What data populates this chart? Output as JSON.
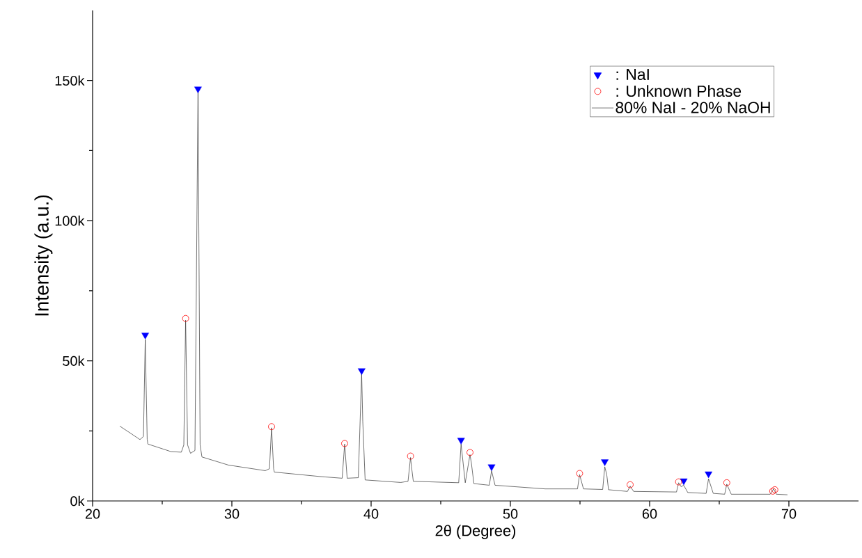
{
  "chart_data": {
    "type": "line",
    "xlabel": "2θ (Degree)",
    "ylabel": "Intensity (a.u.)",
    "xlim": [
      20,
      75
    ],
    "ylim": [
      0,
      175000
    ],
    "xticks": [
      20,
      30,
      40,
      50,
      60,
      70
    ],
    "yticks": [
      {
        "value": 0,
        "label": "0k"
      },
      {
        "value": 50000,
        "label": "50k"
      },
      {
        "value": 100000,
        "label": "100k"
      },
      {
        "value": 150000,
        "label": "150k"
      }
    ],
    "legend": "top right",
    "series": [
      {
        "name": ": NaI",
        "type": "scatter",
        "marker": "triangle",
        "color": "#0000ff",
        "x": [
          23.78,
          27.57,
          39.32,
          46.46,
          48.65,
          56.78,
          62.45,
          64.23
        ],
        "values": [
          59200,
          147000,
          46500,
          21700,
          12200,
          14000,
          7200,
          9700
        ]
      },
      {
        "name": ": Unknown Phase",
        "type": "scatter",
        "marker": "circle",
        "color": "#ff0000",
        "x": [
          26.68,
          32.85,
          38.1,
          42.83,
          47.1,
          54.97,
          58.6,
          62.08,
          65.54,
          68.84,
          68.99
        ],
        "values": [
          65100,
          26500,
          20500,
          16000,
          17300,
          9800,
          5800,
          6800,
          6500,
          3500,
          4000
        ]
      },
      {
        "name": "80% NaI - 20% NaOH",
        "color": "#333333",
        "x": [
          21.95,
          22.65,
          23.4,
          23.65,
          23.78,
          23.92,
          23.97,
          25.63,
          26.37,
          26.55,
          26.68,
          26.82,
          27.03,
          27.35,
          27.57,
          27.72,
          27.85,
          29.75,
          32.4,
          32.7,
          32.85,
          33.0,
          33.05,
          36.35,
          37.92,
          38.1,
          38.28,
          39.08,
          39.32,
          39.4,
          39.57,
          42.13,
          42.65,
          42.83,
          42.9,
          43.03,
          46.29,
          46.46,
          46.76,
          47.1,
          47.2,
          47.38,
          48.49,
          48.65,
          48.9,
          52.5,
          54.82,
          54.97,
          55.25,
          56.63,
          56.78,
          56.92,
          57.05,
          58.41,
          58.6,
          58.85,
          61.93,
          62.08,
          62.26,
          62.45,
          62.74,
          64.06,
          64.23,
          64.57,
          65.39,
          65.54,
          65.86,
          68.66,
          68.9,
          69.1,
          69.9
        ],
        "values": [
          26700,
          24400,
          21900,
          23000,
          57600,
          22000,
          20300,
          17600,
          17400,
          20000,
          64500,
          20000,
          17000,
          18000,
          146500,
          20000,
          15700,
          12800,
          10800,
          11500,
          26100,
          11500,
          10300,
          8700,
          8100,
          20300,
          8100,
          8300,
          45500,
          28500,
          7500,
          6600,
          7000,
          15500,
          12200,
          7000,
          6500,
          20300,
          6500,
          16500,
          13500,
          6200,
          5600,
          10800,
          5600,
          4300,
          4300,
          9400,
          4300,
          4100,
          12200,
          9400,
          4000,
          3400,
          5300,
          3400,
          3200,
          6500,
          5100,
          5600,
          3000,
          2700,
          7900,
          2700,
          2400,
          6000,
          2400,
          2400,
          4300,
          2400,
          2200
        ]
      }
    ]
  }
}
